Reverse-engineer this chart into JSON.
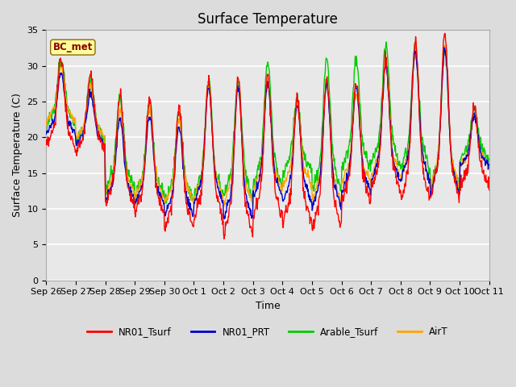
{
  "title": "Surface Temperature",
  "ylabel": "Surface Temperature (C)",
  "xlabel": "Time",
  "ylim": [
    0,
    35
  ],
  "annotation": "BC_met",
  "annotation_color": "#8B0000",
  "annotation_bg": "#FFFF99",
  "fig_bg": "#DCDCDC",
  "plot_bg": "#E8E8E8",
  "grid_color": "#FFFFFF",
  "series": [
    "NR01_Tsurf",
    "NR01_PRT",
    "Arable_Tsurf",
    "AirT"
  ],
  "colors": [
    "#FF0000",
    "#0000CC",
    "#00CC00",
    "#FFA500"
  ],
  "tick_labels": [
    "Sep 26",
    "Sep 27",
    "Sep 28",
    "Sep 29",
    "Sep 30",
    "Oct 1",
    "Oct 2",
    "Oct 3",
    "Oct 4",
    "Oct 5",
    "Oct 6",
    "Oct 7",
    "Oct 8",
    "Oct 9",
    "Oct 10",
    "Oct 11"
  ],
  "n_points": 960,
  "lw": 1.0
}
